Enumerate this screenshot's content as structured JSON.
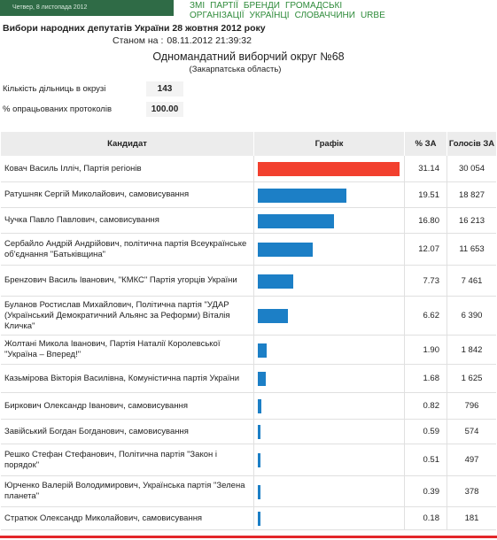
{
  "topbar": {
    "date": "Четвер, 8 листопада 2012",
    "nav": [
      "ЗМІ",
      "ПАРТІЇ",
      "БРЕНДИ",
      "ГРОМАДСЬКІ ОРГАНІЗАЦІЇ",
      "УКРАЇНЦІ",
      "СЛОВАЧЧИНИ",
      "URBE"
    ]
  },
  "header": {
    "title": "Вибори народних депутатів України 28 жовтня 2012 року",
    "status_label": "Станом на :",
    "status_value": "08.11.2012 21:39:32"
  },
  "district": {
    "name": "Одномандатний виборчий округ №68",
    "region": "(Закарпатська область)"
  },
  "stats": {
    "stations_label": "Кількість дільниць в окрузі",
    "stations_value": "143",
    "processed_label": "% опрацьованих протоколів",
    "processed_value": "100.00"
  },
  "table": {
    "headers": {
      "candidate": "Кандидат",
      "graph": "Графік",
      "pct": "% ЗА",
      "votes": "Голосів ЗА"
    },
    "rows": [
      {
        "candidate": "Ковач Василь Ілліч, Партія регіонів",
        "pct": "31.14",
        "votes": "30 054",
        "share": 31.14,
        "lead": true
      },
      {
        "candidate": "Ратушняк Сергій Миколайович, самовисування",
        "pct": "19.51",
        "votes": "18 827",
        "share": 19.51
      },
      {
        "candidate": "Чучка Павло Павлович, самовисування",
        "pct": "16.80",
        "votes": "16 213",
        "share": 16.8
      },
      {
        "candidate": "Сербайло Андрій Андрійович, політична партія Всеукраїнське об'єднання \"Батьківщина\"",
        "pct": "12.07",
        "votes": "11 653",
        "share": 12.07
      },
      {
        "candidate": "Бренzович Василь Іванович, \"КМКС\" Партія угорців України",
        "pct": "7.73",
        "votes": "7 461",
        "share": 7.73
      },
      {
        "candidate": "Буланов Ростислав Михайлович, Політична партія \"УДАР (Український Демократичний Альянс за Реформи) Віталія Кличка\"",
        "pct": "6.62",
        "votes": "6 390",
        "share": 6.62
      },
      {
        "candidate": "Жолтані Микола Іванович, Партія Наталії Королевської \"Україна – Вперед!\"",
        "pct": "1.90",
        "votes": "1 842",
        "share": 1.9
      },
      {
        "candidate": "Казьмірова Вікторія Василівна, Комуністична партія України",
        "pct": "1.68",
        "votes": "1 625",
        "share": 1.68
      },
      {
        "candidate": "Биркович Олександр Іванович, самовисування",
        "pct": "0.82",
        "votes": "796",
        "share": 0.82
      },
      {
        "candidate": "Завійський Богдан Богданович, самовисування",
        "pct": "0.59",
        "votes": "574",
        "share": 0.59
      },
      {
        "candidate": "Решко Стефан Стефанович, Політична партія \"Закон і порядок\"",
        "pct": "0.51",
        "votes": "497",
        "share": 0.51
      },
      {
        "candidate": "Юрченко Валерій Володимирович, Українська партія \"Зелена планета\"",
        "pct": "0.39",
        "votes": "378",
        "share": 0.39
      },
      {
        "candidate": "Стратюк Олександр Миколайович, самовисування",
        "pct": "0.18",
        "votes": "181",
        "share": 0.18
      }
    ]
  },
  "colors": {
    "lead_bar": "#f2402e",
    "bar": "#1c7fc6",
    "header_bg": "#2f6b46",
    "nav_link": "#2e8b3a"
  }
}
